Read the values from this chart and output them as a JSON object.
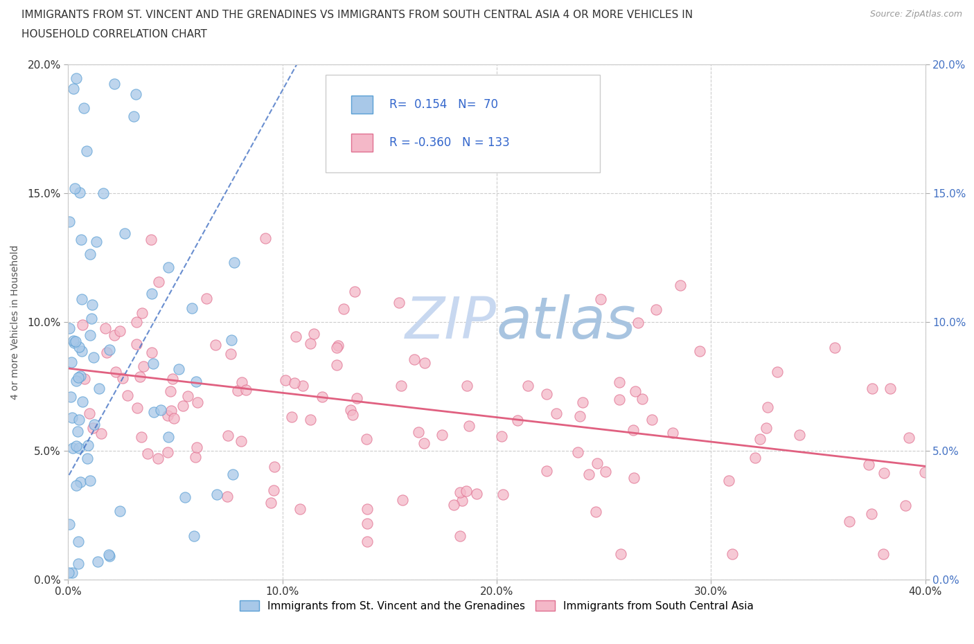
{
  "title_line1": "IMMIGRANTS FROM ST. VINCENT AND THE GRENADINES VS IMMIGRANTS FROM SOUTH CENTRAL ASIA 4 OR MORE VEHICLES IN",
  "title_line2": "HOUSEHOLD CORRELATION CHART",
  "source": "Source: ZipAtlas.com",
  "blue_R": 0.154,
  "blue_N": 70,
  "pink_R": -0.36,
  "pink_N": 133,
  "blue_dot_fill": "#a8c8e8",
  "blue_dot_edge": "#5a9fd4",
  "pink_dot_fill": "#f4b8c8",
  "pink_dot_edge": "#e07090",
  "blue_trend_color": "#4472c4",
  "pink_trend_color": "#e06080",
  "watermark_color": "#c8d8ec",
  "ylabel": "4 or more Vehicles in Household",
  "xmin": 0.0,
  "xmax": 0.4,
  "ymin": 0.0,
  "ymax": 0.2,
  "xticks": [
    0.0,
    0.1,
    0.2,
    0.3,
    0.4
  ],
  "yticks": [
    0.0,
    0.05,
    0.1,
    0.15,
    0.2
  ],
  "xtick_labels": [
    "0.0%",
    "10.0%",
    "20.0%",
    "30.0%",
    "40.0%"
  ],
  "ytick_labels": [
    "0.0%",
    "5.0%",
    "10.0%",
    "15.0%",
    "20.0%"
  ],
  "legend_label_blue": "Immigrants from St. Vincent and the Grenadines",
  "legend_label_pink": "Immigrants from South Central Asia"
}
